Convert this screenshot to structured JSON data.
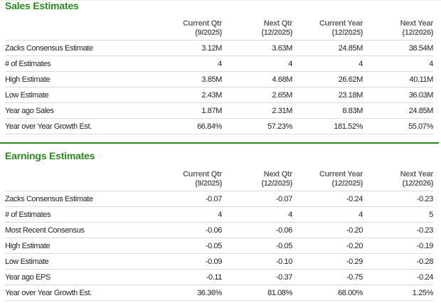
{
  "columns": [
    {
      "label": "Current Qtr",
      "period": "(9/2025)"
    },
    {
      "label": "Next Qtr",
      "period": "(12/2025)"
    },
    {
      "label": "Current Year",
      "period": "(12/2025)"
    },
    {
      "label": "Next Year",
      "period": "(12/2026)"
    }
  ],
  "sales": {
    "title": "Sales Estimates",
    "rows": [
      {
        "label": "Zacks Consensus Estimate",
        "values": [
          "3.12M",
          "3.63M",
          "24.85M",
          "38.54M"
        ]
      },
      {
        "label": "# of Estimates",
        "values": [
          "4",
          "4",
          "4",
          "4"
        ]
      },
      {
        "label": "High Estimate",
        "values": [
          "3.85M",
          "4.68M",
          "26.62M",
          "40.11M"
        ]
      },
      {
        "label": "Low Estimate",
        "values": [
          "2.43M",
          "2.65M",
          "23.18M",
          "36.03M"
        ]
      },
      {
        "label": "Year ago Sales",
        "values": [
          "1.87M",
          "2.31M",
          "8.83M",
          "24.85M"
        ]
      },
      {
        "label": "Year over Year Growth Est.",
        "values": [
          "66.84%",
          "57.23%",
          "181.52%",
          "55.07%"
        ]
      }
    ]
  },
  "earnings": {
    "title": "Earnings Estimates",
    "rows": [
      {
        "label": "Zacks Consensus Estimate",
        "values": [
          "-0.07",
          "-0.07",
          "-0.24",
          "-0.23"
        ]
      },
      {
        "label": "# of Estimates",
        "values": [
          "4",
          "4",
          "4",
          "5"
        ]
      },
      {
        "label": "Most Recent Consensus",
        "values": [
          "-0.06",
          "-0.06",
          "-0.20",
          "-0.23"
        ]
      },
      {
        "label": "High Estimate",
        "values": [
          "-0.05",
          "-0.05",
          "-0.20",
          "-0.19"
        ]
      },
      {
        "label": "Low Estimate",
        "values": [
          "-0.09",
          "-0.10",
          "-0.29",
          "-0.28"
        ]
      },
      {
        "label": "Year ago EPS",
        "values": [
          "-0.11",
          "-0.37",
          "-0.75",
          "-0.24"
        ]
      },
      {
        "label": "Year over Year Growth Est.",
        "values": [
          "36.36%",
          "81.08%",
          "68.00%",
          "1.25%"
        ]
      }
    ]
  },
  "colors": {
    "accent": "#2a8a1f",
    "header_text": "#666666",
    "row_border": "#d8d8d8"
  }
}
